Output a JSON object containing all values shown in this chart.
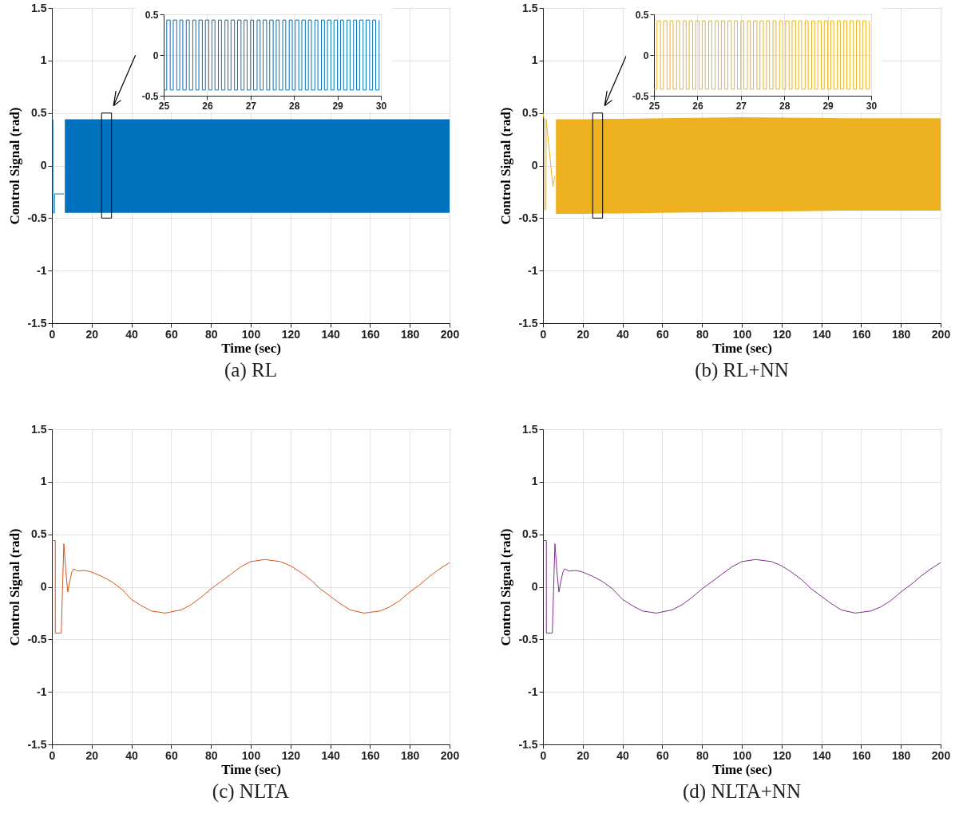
{
  "chart_data": [
    {
      "type": "line",
      "title": "(a) RL",
      "xlabel": "Time (sec)",
      "ylabel": "Control Signal (rad)",
      "xlim": [
        0,
        200
      ],
      "ylim": [
        -1.5,
        1.5
      ],
      "xticks": [
        0,
        20,
        40,
        60,
        80,
        100,
        120,
        140,
        160,
        180,
        200
      ],
      "yticks": [
        -1.5,
        -1,
        -0.5,
        0,
        0.5,
        1,
        1.5
      ],
      "grid": true,
      "series": [
        {
          "color": "#0072bd",
          "x": [
            0,
            0.5,
            0.5,
            1.3,
            1.3,
            6,
            6.5,
            50,
            100,
            150,
            200
          ],
          "values": [
            0.44,
            0.44,
            -0.45,
            -0.45,
            -0.27,
            -0.27,
            null,
            null,
            null,
            null,
            null
          ],
          "lower": [
            null,
            null,
            null,
            null,
            null,
            null,
            -0.45,
            -0.45,
            -0.45,
            -0.45,
            -0.45
          ],
          "upper": [
            null,
            null,
            null,
            null,
            null,
            null,
            0.44,
            0.44,
            0.44,
            0.44,
            0.44
          ]
        }
      ]
    },
    {
      "type": "step",
      "xlim": [
        25,
        30
      ],
      "ylim": [
        -0.5,
        0.5
      ],
      "xticks": [
        25,
        26,
        27,
        28,
        29,
        30
      ],
      "yticks": [
        -0.5,
        0,
        0.5
      ],
      "grid": true,
      "series": [
        {
          "color": "#0072bd",
          "x": [
            25.0,
            25.07,
            25.15,
            25.22,
            25.3,
            25.37,
            25.44,
            25.52,
            25.59,
            25.67,
            25.74,
            25.81,
            25.89,
            25.96,
            26.04,
            26.11,
            26.18,
            26.26,
            26.33,
            26.41,
            26.48,
            26.55,
            26.63,
            26.7,
            26.78,
            26.85,
            26.92,
            27.0,
            27.07,
            27.15,
            27.22,
            27.29,
            27.37,
            27.44,
            27.52,
            27.59,
            27.66,
            27.74,
            27.81,
            27.89,
            27.96,
            28.03,
            28.11,
            28.18,
            28.26,
            28.33,
            28.4,
            28.48,
            28.55,
            28.63,
            28.7,
            28.77,
            28.85,
            28.92,
            29.0,
            29.07,
            29.14,
            29.22,
            29.29,
            29.37,
            29.44,
            29.51,
            29.59,
            29.66,
            29.74,
            29.81,
            29.88,
            29.96
          ],
          "values": [
            -0.43,
            0.43,
            -0.43,
            0.43,
            -0.43,
            0.43,
            -0.43,
            0.43,
            -0.43,
            0.43,
            -0.43,
            0.43,
            -0.43,
            0.43,
            -0.43,
            0.43,
            -0.43,
            0.43,
            -0.43,
            0.43,
            -0.43,
            0.43,
            -0.43,
            0.43,
            -0.43,
            0.43,
            -0.43,
            0.43,
            -0.43,
            0.43,
            -0.43,
            0.43,
            -0.43,
            0.43,
            -0.43,
            0.43,
            -0.43,
            0.43,
            -0.43,
            0.43,
            -0.43,
            0.43,
            -0.43,
            0.43,
            -0.43,
            0.43,
            -0.43,
            0.43,
            -0.43,
            0.43,
            -0.43,
            0.43,
            -0.43,
            0.43,
            -0.43,
            0.43,
            -0.43,
            0.43,
            -0.43,
            0.43,
            -0.43,
            0.43,
            -0.43,
            0.43,
            -0.43,
            0.43,
            -0.43,
            0.43
          ]
        }
      ]
    },
    {
      "type": "line",
      "title": "(b) RL+NN",
      "xlabel": "Time (sec)",
      "ylabel": "Control Signal (rad)",
      "xlim": [
        0,
        200
      ],
      "ylim": [
        -1.5,
        1.5
      ],
      "xticks": [
        0,
        20,
        40,
        60,
        80,
        100,
        120,
        140,
        160,
        180,
        200
      ],
      "yticks": [
        -1.5,
        -1,
        -0.5,
        0,
        0.5,
        1,
        1.5
      ],
      "grid": true,
      "series": [
        {
          "color": "#edb120",
          "x": [
            0,
            0.6,
            0.8,
            1.5,
            1.6,
            5,
            6,
            6.5,
            20,
            60,
            100,
            150,
            200
          ],
          "values": [
            0.5,
            0.44,
            -0.42,
            -0.42,
            0.44,
            -0.2,
            -0.1,
            null,
            null,
            null,
            null,
            null,
            null
          ],
          "lower": [
            null,
            null,
            null,
            null,
            null,
            null,
            null,
            -0.46,
            -0.46,
            -0.45,
            -0.44,
            -0.43,
            -0.43
          ],
          "upper": [
            null,
            null,
            null,
            null,
            null,
            null,
            null,
            0.44,
            0.44,
            0.45,
            0.46,
            0.45,
            0.45
          ]
        }
      ]
    },
    {
      "type": "step",
      "xlim": [
        25,
        30
      ],
      "ylim": [
        -0.5,
        0.5
      ],
      "xticks": [
        25,
        26,
        27,
        28,
        29,
        30
      ],
      "yticks": [
        -0.5,
        0,
        0.5
      ],
      "grid": true,
      "series": [
        {
          "color": "#edb120",
          "x": [
            25.0,
            25.07,
            25.15,
            25.22,
            25.3,
            25.37,
            25.44,
            25.52,
            25.59,
            25.67,
            25.74,
            25.81,
            25.89,
            25.96,
            26.04,
            26.11,
            26.18,
            26.26,
            26.33,
            26.41,
            26.48,
            26.55,
            26.63,
            26.7,
            26.78,
            26.85,
            26.92,
            27.0,
            27.07,
            27.15,
            27.22,
            27.29,
            27.37,
            27.44,
            27.52,
            27.59,
            27.66,
            27.74,
            27.81,
            27.89,
            27.96,
            28.03,
            28.11,
            28.18,
            28.26,
            28.33,
            28.4,
            28.48,
            28.55,
            28.63,
            28.7,
            28.77,
            28.85,
            28.92,
            29.0,
            29.07,
            29.14,
            29.22,
            29.29,
            29.37,
            29.44,
            29.51,
            29.59,
            29.66,
            29.74,
            29.81,
            29.88,
            29.96
          ],
          "values": [
            -0.42,
            0.42,
            -0.42,
            0.42,
            -0.42,
            0.42,
            -0.42,
            0.42,
            -0.42,
            0.42,
            -0.42,
            0.42,
            -0.42,
            0.42,
            -0.42,
            0.42,
            -0.42,
            0.42,
            -0.42,
            0.42,
            -0.42,
            0.42,
            -0.42,
            0.42,
            -0.42,
            0.42,
            -0.42,
            0.42,
            -0.42,
            0.42,
            -0.42,
            0.42,
            -0.42,
            0.42,
            -0.42,
            0.42,
            -0.42,
            0.42,
            -0.42,
            0.42,
            -0.42,
            0.42,
            -0.42,
            0.42,
            -0.42,
            0.42,
            -0.42,
            0.42,
            -0.42,
            0.42,
            -0.42,
            0.42,
            -0.42,
            0.42,
            -0.42,
            0.42,
            -0.42,
            0.42,
            -0.42,
            0.42,
            -0.42,
            0.42,
            -0.42,
            0.42,
            -0.42,
            0.42,
            -0.42,
            0.42
          ]
        }
      ]
    },
    {
      "type": "line",
      "title": "(c) NLTA",
      "xlabel": "Time (sec)",
      "ylabel": "Control Signal (rad)",
      "xlim": [
        0,
        200
      ],
      "ylim": [
        -1.5,
        1.5
      ],
      "xticks": [
        0,
        20,
        40,
        60,
        80,
        100,
        120,
        140,
        160,
        180,
        200
      ],
      "yticks": [
        -1.5,
        -1,
        -0.5,
        0,
        0.5,
        1,
        1.5
      ],
      "grid": true,
      "series": [
        {
          "color": "#d95319",
          "x": [
            0,
            1.7,
            1.7,
            4.7,
            6,
            7,
            8,
            9,
            10,
            11,
            13,
            16,
            18,
            20,
            25,
            30,
            35,
            40,
            45,
            50,
            57,
            65,
            70,
            75,
            80,
            85,
            90,
            95,
            100,
            107,
            115,
            120,
            125,
            130,
            135,
            140,
            145,
            150,
            157,
            165,
            170,
            175,
            180,
            185,
            190,
            195,
            200
          ],
          "values": [
            0.44,
            0.44,
            -0.44,
            -0.44,
            0.41,
            0.15,
            -0.05,
            0.05,
            0.14,
            0.17,
            0.15,
            0.155,
            0.15,
            0.14,
            0.1,
            0.05,
            -0.02,
            -0.12,
            -0.18,
            -0.23,
            -0.25,
            -0.22,
            -0.17,
            -0.1,
            -0.02,
            0.05,
            0.12,
            0.19,
            0.24,
            0.26,
            0.24,
            0.2,
            0.14,
            0.07,
            -0.02,
            -0.09,
            -0.16,
            -0.22,
            -0.25,
            -0.23,
            -0.19,
            -0.13,
            -0.05,
            0.02,
            0.1,
            0.17,
            0.23
          ]
        }
      ]
    },
    {
      "type": "line",
      "title": "(d) NLTA+NN",
      "xlabel": "Time (sec)",
      "ylabel": "Control Signal (rad)",
      "xlim": [
        0,
        200
      ],
      "ylim": [
        -1.5,
        1.5
      ],
      "xticks": [
        0,
        20,
        40,
        60,
        80,
        100,
        120,
        140,
        160,
        180,
        200
      ],
      "yticks": [
        -1.5,
        -1,
        -0.5,
        0,
        0.5,
        1,
        1.5
      ],
      "grid": true,
      "series": [
        {
          "color": "#7e2f8e",
          "x": [
            0,
            1.7,
            1.7,
            4.7,
            6,
            7,
            8,
            9,
            10,
            11,
            13,
            16,
            18,
            20,
            25,
            30,
            35,
            40,
            45,
            50,
            57,
            65,
            70,
            75,
            80,
            85,
            90,
            95,
            100,
            107,
            115,
            120,
            125,
            130,
            135,
            140,
            145,
            150,
            157,
            165,
            170,
            175,
            180,
            185,
            190,
            195,
            200
          ],
          "values": [
            0.44,
            0.44,
            -0.44,
            -0.44,
            0.41,
            0.15,
            -0.05,
            0.05,
            0.14,
            0.17,
            0.15,
            0.155,
            0.15,
            0.14,
            0.1,
            0.05,
            -0.02,
            -0.12,
            -0.18,
            -0.23,
            -0.25,
            -0.22,
            -0.17,
            -0.1,
            -0.02,
            0.05,
            0.12,
            0.19,
            0.24,
            0.26,
            0.24,
            0.2,
            0.14,
            0.07,
            -0.02,
            -0.09,
            -0.16,
            -0.22,
            -0.25,
            -0.23,
            -0.19,
            -0.13,
            -0.05,
            0.02,
            0.1,
            0.17,
            0.23
          ]
        }
      ]
    }
  ]
}
